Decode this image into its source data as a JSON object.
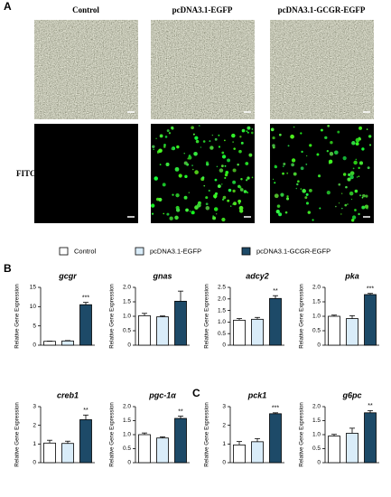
{
  "figure": {
    "panels": {
      "a": "A",
      "b": "B",
      "c": "C"
    },
    "columns": [
      "Control",
      "pcDNA3.1-EGFP",
      "pcDNA3.1-GCGR-EGFP"
    ],
    "row_label": "FITC",
    "legend": [
      {
        "name": "Control",
        "color": "#ffffff"
      },
      {
        "name": "pcDNA3.1-EGFP",
        "color": "#d9ecf9"
      },
      {
        "name": "pcDNA3.1-GCGR-EGFP",
        "color": "#1d4a68"
      }
    ]
  },
  "chart_data": [
    {
      "type": "bar",
      "title": "gcgr",
      "ylabel": "Relative Gene Expression",
      "values": [
        1.0,
        1.1,
        10.5
      ],
      "errors": [
        0.05,
        0.1,
        0.6
      ],
      "annotation": "***",
      "ylim": [
        0,
        15
      ],
      "yticks": [
        0,
        5,
        10,
        15
      ]
    },
    {
      "type": "bar",
      "title": "gnas",
      "ylabel": "Relative Gene Expression",
      "values": [
        1.02,
        0.98,
        1.52
      ],
      "errors": [
        0.08,
        0.03,
        0.35
      ],
      "ylim": [
        0,
        2
      ],
      "yticks": [
        0,
        0.5,
        {
          "value": 1,
          "label": "1.0"
        },
        1.5,
        {
          "value": 2,
          "label": "2.0"
        }
      ]
    },
    {
      "type": "bar",
      "title": "adcy2",
      "ylabel": "Relative Gene Expression",
      "values": [
        1.08,
        1.12,
        2.02
      ],
      "errors": [
        0.07,
        0.08,
        0.12
      ],
      "annotation": "**",
      "ylim": [
        0,
        2.5
      ],
      "yticks": [
        0,
        0.5,
        {
          "value": 1,
          "label": "1.0"
        },
        1.5,
        {
          "value": 2,
          "label": "2.0"
        },
        2.5
      ]
    },
    {
      "type": "bar",
      "title": "pka",
      "ylabel": "Relative Gene Expression",
      "values": [
        1.0,
        0.92,
        1.75
      ],
      "errors": [
        0.04,
        0.1,
        0.04
      ],
      "annotation": "***",
      "ylim": [
        0,
        2
      ],
      "yticks": [
        0,
        0.5,
        {
          "value": 1,
          "label": "1.0"
        },
        1.5,
        {
          "value": 2,
          "label": "2.0"
        }
      ]
    },
    {
      "type": "bar",
      "title": "creb1",
      "ylabel": "Relative Gene Expression",
      "values": [
        1.05,
        1.03,
        2.3
      ],
      "errors": [
        0.15,
        0.12,
        0.25
      ],
      "annotation": "**",
      "ylim": [
        0,
        3
      ],
      "yticks": [
        0,
        1,
        2,
        3
      ]
    },
    {
      "type": "bar",
      "title": "pgc-1α",
      "ylabel": "Relative Gene Expression",
      "values": [
        1.0,
        0.88,
        1.58
      ],
      "errors": [
        0.06,
        0.04,
        0.08
      ],
      "annotation": "**",
      "ylim": [
        0,
        2
      ],
      "yticks": [
        0,
        0.5,
        {
          "value": 1,
          "label": "1.0"
        },
        1.5,
        {
          "value": 2,
          "label": "2.0"
        }
      ]
    },
    {
      "type": "bar",
      "title": "pck1",
      "ylabel": "Relative Gene Expression",
      "values": [
        0.95,
        1.12,
        2.62
      ],
      "errors": [
        0.18,
        0.17,
        0.05
      ],
      "annotation": "***",
      "ylim": [
        0,
        3
      ],
      "yticks": [
        0,
        1,
        2,
        3
      ]
    },
    {
      "type": "bar",
      "title": "g6pc",
      "ylabel": "Relative Gene Expression",
      "values": [
        0.95,
        1.05,
        1.78
      ],
      "errors": [
        0.06,
        0.18,
        0.08
      ],
      "annotation": "**",
      "ylim": [
        0,
        2
      ],
      "yticks": [
        0,
        0.5,
        {
          "value": 1,
          "label": "1.0"
        },
        1.5,
        {
          "value": 2,
          "label": "2.0"
        }
      ]
    }
  ]
}
